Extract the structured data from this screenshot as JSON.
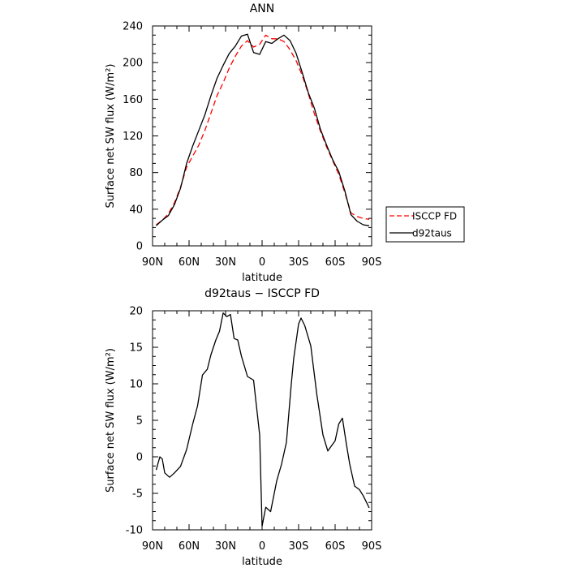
{
  "chart_data": [
    {
      "type": "line",
      "title": "ANN",
      "xlabel": "latitude",
      "ylabel": "Surface net SW flux (W/m²)",
      "ylim": [
        0,
        240
      ],
      "yticks": [
        0,
        40,
        80,
        120,
        160,
        200,
        240
      ],
      "xlim": [
        90,
        -90
      ],
      "xticks": [
        90,
        60,
        30,
        0,
        -30,
        -60,
        -90
      ],
      "xticklabels": [
        "90N",
        "60N",
        "30N",
        "0",
        "30S",
        "60S",
        "90S"
      ],
      "legend_placement": "right, outside plot",
      "series": [
        {
          "name": "ISCCP FD",
          "color": "#ff0000",
          "dash": "dashed",
          "x": [
            87,
            82,
            77,
            72,
            67,
            62,
            57,
            52,
            47,
            42,
            37,
            32,
            27,
            22,
            17,
            12,
            7,
            2,
            -3,
            -8,
            -13,
            -18,
            -23,
            -28,
            -33,
            -38,
            -43,
            -48,
            -53,
            -58,
            -63,
            -68,
            -73,
            -78,
            -83,
            -88
          ],
          "y": [
            23,
            28,
            35,
            47,
            64,
            86,
            98,
            110,
            126,
            145,
            164,
            178,
            194,
            207,
            218,
            224,
            217,
            220,
            230,
            226,
            226,
            223,
            214,
            202,
            186,
            166,
            144,
            125,
            108,
            93,
            78,
            58,
            36,
            32,
            30,
            29
          ]
        },
        {
          "name": "d92taus",
          "color": "#000000",
          "dash": "solid",
          "x": [
            87,
            82,
            77,
            72,
            67,
            62,
            57,
            52,
            47,
            42,
            37,
            32,
            27,
            22,
            17,
            12,
            7,
            2,
            -3,
            -8,
            -13,
            -18,
            -23,
            -28,
            -33,
            -38,
            -43,
            -48,
            -53,
            -58,
            -63,
            -68,
            -73,
            -78,
            -83,
            -88
          ],
          "y": [
            22,
            28,
            33,
            45,
            63,
            90,
            109,
            126,
            143,
            164,
            183,
            197,
            210,
            218,
            229,
            231,
            211,
            209,
            223,
            221,
            226,
            230,
            224,
            210,
            189,
            167,
            150,
            127,
            110,
            94,
            81,
            60,
            34,
            27,
            23,
            22
          ]
        }
      ]
    },
    {
      "type": "line",
      "title": "d92taus − ISCCP FD",
      "xlabel": "latitude",
      "ylabel": "Surface net SW flux (W/m²)",
      "ylim": [
        -10,
        20
      ],
      "yticks": [
        -10,
        -5,
        0,
        5,
        10,
        15,
        20
      ],
      "xlim": [
        90,
        -90
      ],
      "xticks": [
        90,
        60,
        30,
        0,
        -30,
        -60,
        -90
      ],
      "xticklabels": [
        "90N",
        "60N",
        "30N",
        "0",
        "30S",
        "60S",
        "90S"
      ],
      "series": [
        {
          "color": "#000000",
          "dash": "solid",
          "x": [
            87,
            84,
            82,
            80,
            76,
            72,
            67,
            62,
            57,
            53,
            49,
            45,
            42,
            38,
            35,
            32,
            29,
            26,
            23,
            20,
            17,
            12,
            7,
            2,
            0,
            -3,
            -7,
            -12,
            -16,
            -20,
            -24,
            -26,
            -30,
            -32,
            -35,
            -40,
            -45,
            -50,
            -54,
            -60,
            -63,
            -66,
            -69,
            -72,
            -76,
            -80,
            -83,
            -86,
            -88
          ],
          "y": [
            -1.8,
            0,
            -0.3,
            -2.2,
            -2.8,
            -2.2,
            -1.3,
            1,
            4.5,
            7,
            11.2,
            12,
            14,
            16,
            17.2,
            19.7,
            19.2,
            19.5,
            16.2,
            16,
            13.8,
            11,
            10.5,
            3,
            -9.5,
            -6.9,
            -7.5,
            -3.3,
            -1,
            2,
            10,
            13.5,
            18.2,
            19,
            18,
            15.2,
            8.5,
            3,
            0.8,
            2.2,
            4.5,
            5.3,
            2,
            -1,
            -4,
            -4.5,
            -5.3,
            -6.3,
            -7
          ]
        }
      ]
    }
  ]
}
